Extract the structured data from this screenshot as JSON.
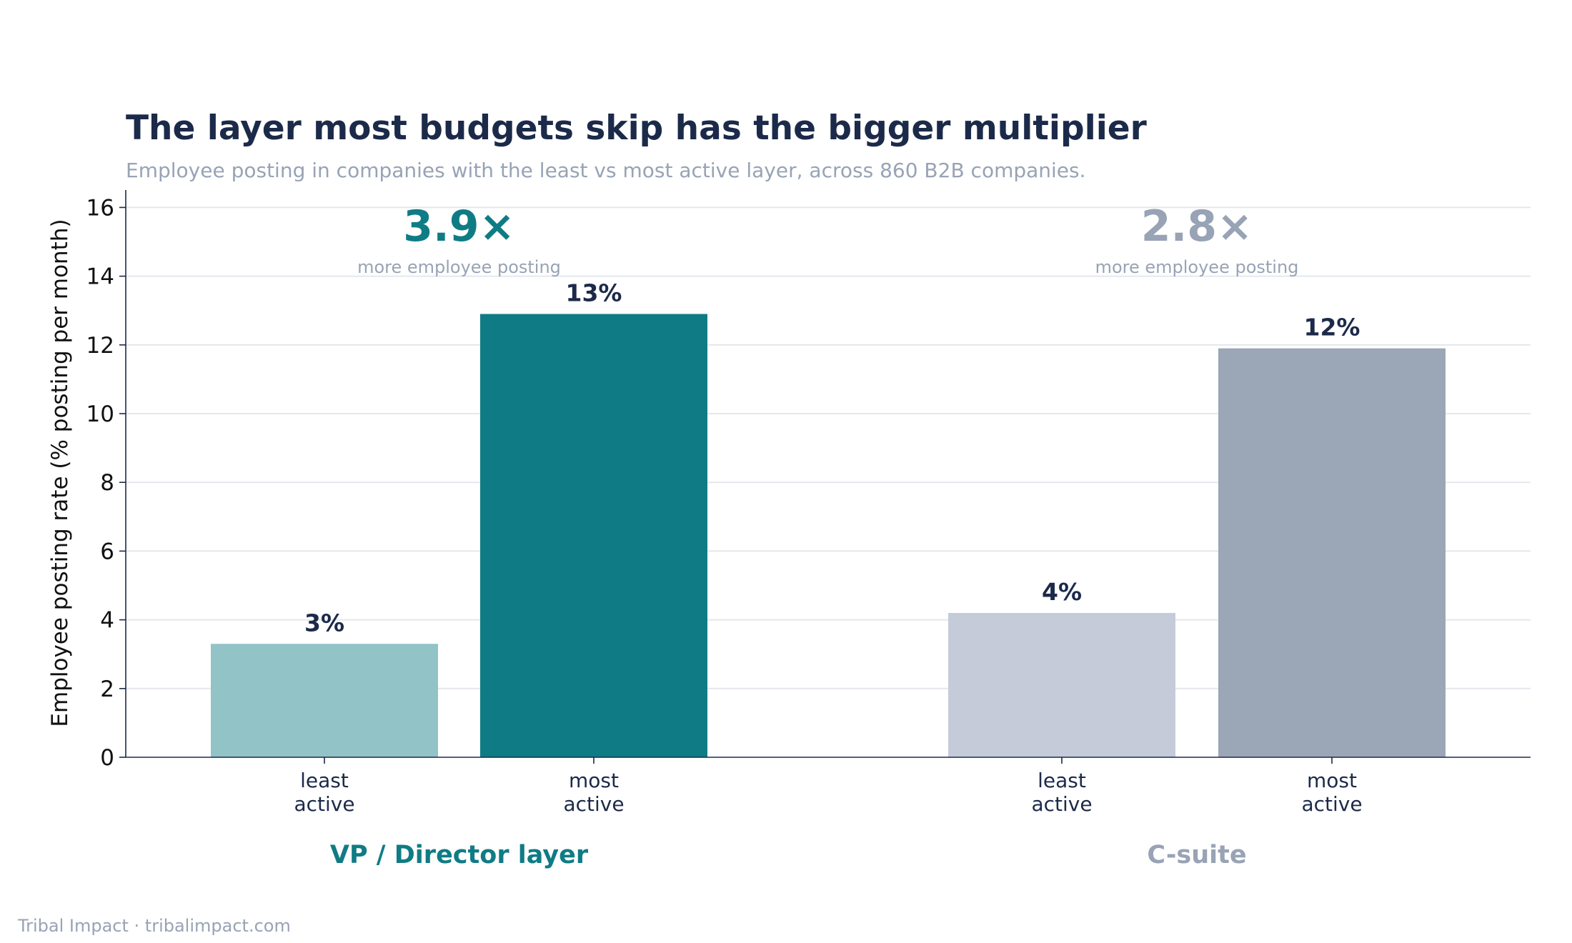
{
  "chart_data": {
    "type": "bar",
    "title": "The layer most budgets skip has the bigger multiplier",
    "subtitle": "Employee posting in companies with the least vs most active layer, across 860 B2B companies.",
    "ylabel": "Employee posting rate  (% posting per month)",
    "ylim": [
      0,
      16.5
    ],
    "yticks": [
      0,
      2,
      4,
      6,
      8,
      10,
      12,
      14,
      16
    ],
    "grid": true,
    "groups": [
      {
        "name": "VP / Director layer",
        "color": "#0f7c85",
        "multiplier": "3.9×",
        "multiplier_note": "more employee posting",
        "bars": [
          {
            "category": "least\nactive",
            "value": 3.3,
            "label": "3%",
            "color": "#91c3c7"
          },
          {
            "category": "most\nactive",
            "value": 12.9,
            "label": "13%",
            "color": "#0f7c85"
          }
        ]
      },
      {
        "name": "C-suite",
        "color": "#98a3b5",
        "multiplier": "2.8×",
        "multiplier_note": "more employee posting",
        "bars": [
          {
            "category": "least\nactive",
            "value": 4.2,
            "label": "4%",
            "color": "#c5cbd8"
          },
          {
            "category": "most\nactive",
            "value": 11.9,
            "label": "12%",
            "color": "#9ba6b6"
          }
        ]
      }
    ]
  },
  "footer": "Tribal Impact  ·  tribalimpact.com"
}
